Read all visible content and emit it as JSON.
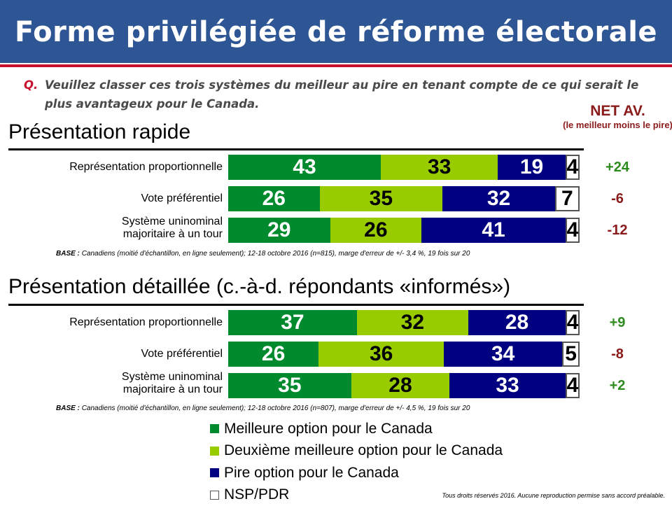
{
  "header": {
    "title": "Forme privilégiée de réforme électorale"
  },
  "question": {
    "marker": "Q.",
    "text": "Veuillez classer ces trois systèmes du meilleur au pire en tenant compte de ce qui serait le plus avantageux pour le Canada."
  },
  "net_header": {
    "title": "NET AV.",
    "subtitle": "(le meilleur moins le pire)"
  },
  "colors": {
    "best": "#008a2e",
    "second": "#99cc00",
    "worst": "#000080",
    "dk": "#ffffff",
    "net_positive": "#2e8b1e",
    "net_negative": "#8b1a1a"
  },
  "legend": [
    {
      "label": "Meilleure option pour le Canada",
      "color": "#008a2e"
    },
    {
      "label": "Deuxième meilleure option pour le Canada",
      "color": "#99cc00"
    },
    {
      "label": "Pire option pour le Canada",
      "color": "#000080"
    },
    {
      "label": "NSP/PDR",
      "color": "#ffffff"
    }
  ],
  "chart_data": [
    {
      "type": "bar",
      "stacked": true,
      "orientation": "horizontal",
      "title": "Présentation rapide",
      "categories": [
        "Représentation proportionnelle",
        "Vote préférentiel",
        "Système uninominal\nmajoritaire à un tour"
      ],
      "series": [
        {
          "name": "Meilleure option pour le Canada",
          "values": [
            43,
            26,
            29
          ]
        },
        {
          "name": "Deuxième meilleure option pour le Canada",
          "values": [
            33,
            35,
            26
          ]
        },
        {
          "name": "Pire option pour le Canada",
          "values": [
            19,
            32,
            41
          ]
        },
        {
          "name": "NSP/PDR",
          "values": [
            4,
            7,
            4
          ]
        }
      ],
      "net": [
        "+24",
        "-6",
        "-12"
      ],
      "base": {
        "label": "BASE :",
        "text": "Canadiens (moitié d'échantillon, en ligne seulement); 12-18 octobre 2016 (n=815), marge d'erreur de +/- 3,4 %, 19 fois sur 20"
      }
    },
    {
      "type": "bar",
      "stacked": true,
      "orientation": "horizontal",
      "title": "Présentation détaillée (c.-à-d. répondants «informés»)",
      "categories": [
        "Représentation proportionnelle",
        "Vote préférentiel",
        "Système uninominal\nmajoritaire à un tour"
      ],
      "series": [
        {
          "name": "Meilleure option pour le Canada",
          "values": [
            37,
            26,
            35
          ]
        },
        {
          "name": "Deuxième meilleure option pour le Canada",
          "values": [
            32,
            36,
            28
          ]
        },
        {
          "name": "Pire option pour le Canada",
          "values": [
            28,
            34,
            33
          ]
        },
        {
          "name": "NSP/PDR",
          "values": [
            4,
            5,
            4
          ]
        }
      ],
      "net": [
        "+9",
        "-8",
        "+2"
      ],
      "base": {
        "label": "BASE :",
        "text": "Canadiens (moitié d'échantillon, en ligne seulement); 12-18 octobre 2016 (n=807), marge d'erreur de +/- 4,5 %, 19 fois sur 20"
      }
    }
  ],
  "copyright": "Tous droits réservés 2016. Aucune reproduction permise sans accord préalable."
}
